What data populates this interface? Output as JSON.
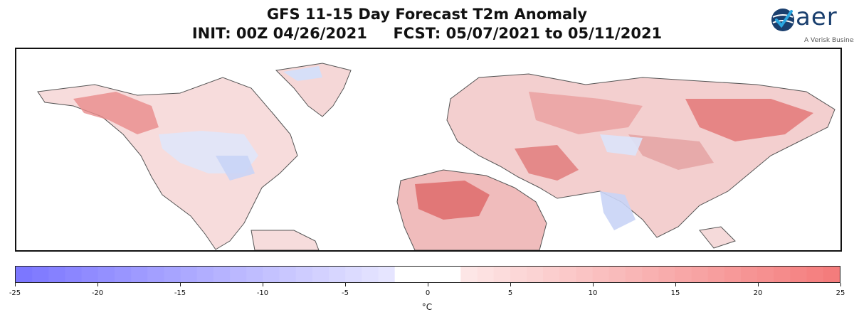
{
  "title_line1": "GFS 11-15 Day Forecast T2m Anomaly",
  "title_line2": "INIT: 00Z 04/26/2021     FCST: 05/07/2021 to 05/11/2021",
  "logo": {
    "text": "aer",
    "tagline": "A Verisk Business"
  },
  "colorbar": {
    "min": -25,
    "max": 25,
    "steps": 50,
    "ticks": [
      "-25",
      "-20",
      "-15",
      "-10",
      "-5",
      "0",
      "5",
      "10",
      "15",
      "20",
      "25"
    ],
    "unit": "°C",
    "cold_color": "#7a74ff",
    "neutral_color": "#ffffff",
    "warm_color": "#f47a7a"
  }
}
